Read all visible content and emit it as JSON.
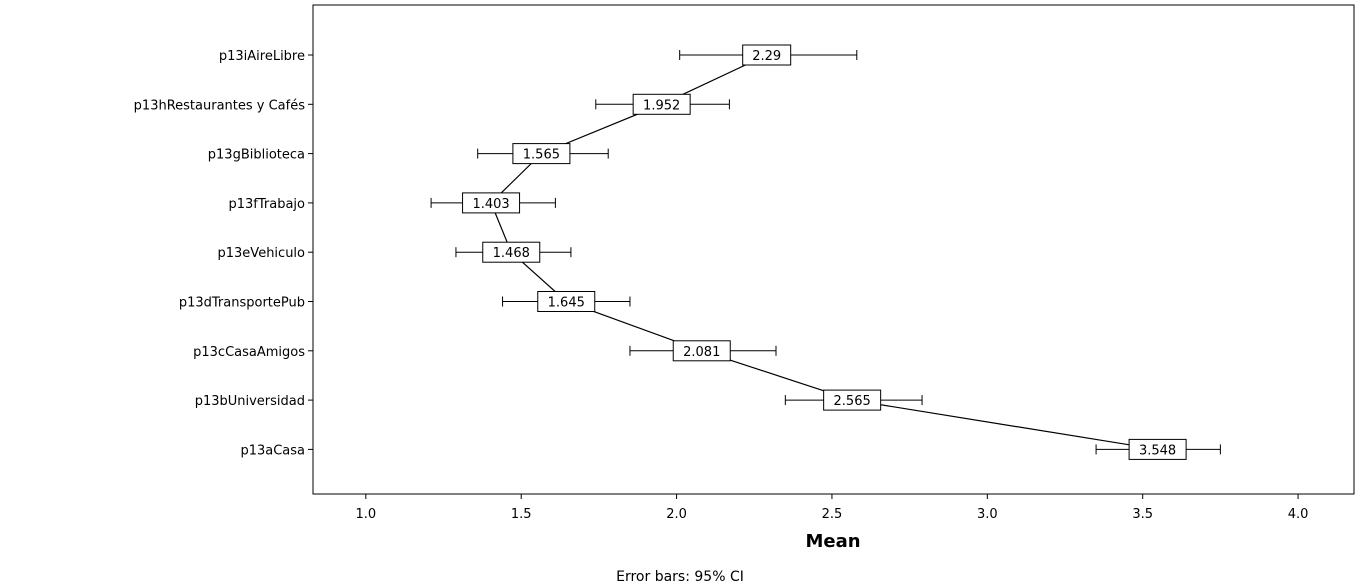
{
  "chart_data": {
    "type": "line",
    "orientation": "horizontal",
    "categories": [
      "p13iAireLibre",
      "p13hRestaurantes y Cafés",
      "p13gBiblioteca",
      "p13fTrabajo",
      "p13eVehiculo",
      "p13dTransportePub",
      "p13cCasaAmigos",
      "p13bUniversidad",
      "p13aCasa"
    ],
    "series": [
      {
        "values": [
          2.29,
          1.952,
          1.565,
          1.403,
          1.468,
          1.645,
          2.081,
          2.565,
          3.548
        ],
        "data_labels": [
          "2.29",
          "1.952",
          "1.565",
          "1.403",
          "1.468",
          "1.645",
          "2.081",
          "2.565",
          "3.548"
        ],
        "ci_low": [
          2.01,
          1.74,
          1.36,
          1.21,
          1.29,
          1.44,
          1.85,
          2.35,
          3.35
        ],
        "ci_high": [
          2.58,
          2.17,
          1.78,
          1.61,
          1.66,
          1.85,
          2.32,
          2.79,
          3.75
        ]
      }
    ],
    "x_ticks": [
      "1.0",
      "1.5",
      "2.0",
      "2.5",
      "3.0",
      "3.5",
      "4.0"
    ],
    "xlim": [
      0.83,
      4.18
    ],
    "xlabel": "Mean",
    "ylabel": "",
    "title": "",
    "footnote": "Error bars: 95% CI",
    "grid": false,
    "legend": "none"
  }
}
